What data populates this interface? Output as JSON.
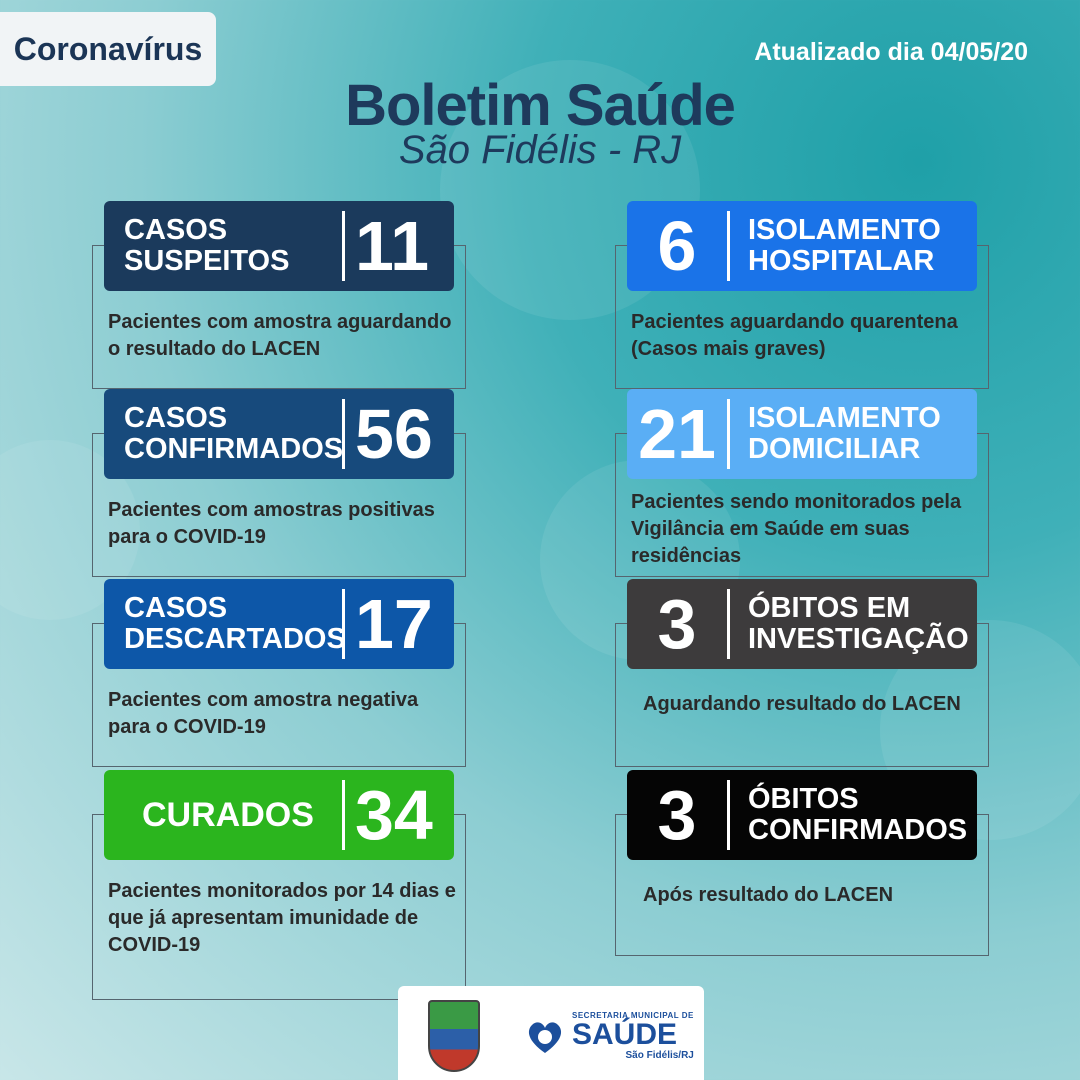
{
  "header": {
    "tag": "Coronavírus",
    "updated": "Atualizado dia 04/05/20",
    "title": "Boletim Saúde",
    "subtitle": "São Fidélis - RJ"
  },
  "cards": {
    "suspeitos": {
      "label_1": "CASOS",
      "label_2": "SUSPEITOS",
      "value": "11",
      "description": "Pacientes com amostra aguardando o resultado do LACEN",
      "color": "#1b3a5c"
    },
    "confirmados": {
      "label_1": "CASOS",
      "label_2": "CONFIRMADOS",
      "value": "56",
      "description": "Pacientes com amostras positivas para o COVID-19",
      "color": "#174a7c"
    },
    "descartados": {
      "label_1": "CASOS",
      "label_2": "DESCARTADOS",
      "value": "17",
      "description": "Pacientes com amostra negativa para o COVID-19",
      "color": "#0d57a8"
    },
    "curados": {
      "label_1": "CURADOS",
      "value": "34",
      "description": "Pacientes monitorados por 14 dias e que já apresentam imunidade de COVID-19",
      "color": "#2bb51e"
    },
    "isolamento_hospitalar": {
      "label_1": "ISOLAMENTO",
      "label_2": "HOSPITALAR",
      "value": "6",
      "description": "Pacientes aguardando quarentena (Casos mais graves)",
      "color": "#1a73e8"
    },
    "isolamento_domiciliar": {
      "label_1": "ISOLAMENTO",
      "label_2": "DOMICILIAR",
      "value": "21",
      "description": "Pacientes sendo monitorados pela Vigilância em Saúde em suas residências",
      "color": "#5aaef5"
    },
    "obitos_investigacao": {
      "label_1": "ÓBITOS EM",
      "label_2": "INVESTIGAÇÃO",
      "value": "3",
      "description": "Aguardando resultado do LACEN",
      "color": "#3d3b3c"
    },
    "obitos_confirmados": {
      "label_1": "ÓBITOS",
      "label_2": "CONFIRMADOS",
      "value": "3",
      "description": "Após resultado do LACEN",
      "color": "#050505"
    }
  },
  "footer": {
    "saude_top": "SECRETARIA MUNICIPAL DE",
    "saude_main": "SAÚDE",
    "saude_sub": "São Fidélis/RJ"
  }
}
